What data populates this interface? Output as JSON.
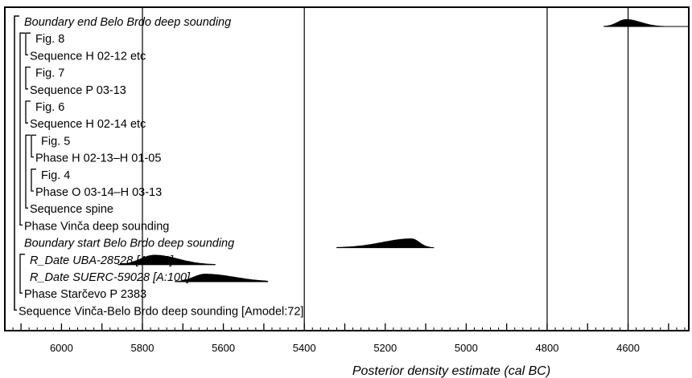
{
  "chart_data": {
    "type": "density-ridge",
    "title": "",
    "xlabel": "Posterior density estimate (cal BC)",
    "x_reversed": true,
    "xlim": [
      6140,
      4450
    ],
    "major_ticks": [
      6000,
      5800,
      5600,
      5400,
      5200,
      5000,
      4800,
      4600
    ],
    "minor_tick_step": 20,
    "gridlines": [
      5800,
      5400,
      4800,
      4600
    ],
    "rows": [
      {
        "label": "Boundary end Belo Brdo deep sounding",
        "italic": true,
        "indent": 0,
        "density": {
          "range": [
            4660,
            4450
          ],
          "peak": 4605,
          "height": 0.55,
          "skew": 0.6
        }
      },
      {
        "label": "Fig. 8",
        "italic": false,
        "indent": 2
      },
      {
        "label": "Sequence H 02-12 etc",
        "italic": false,
        "indent": 1
      },
      {
        "label": "Fig. 7",
        "italic": false,
        "indent": 2
      },
      {
        "label": "Sequence P 03-13",
        "italic": false,
        "indent": 1
      },
      {
        "label": "Fig. 6",
        "italic": false,
        "indent": 2
      },
      {
        "label": "Sequence H 02-14 etc",
        "italic": false,
        "indent": 1
      },
      {
        "label": "Fig. 5",
        "italic": false,
        "indent": 3
      },
      {
        "label": "Phase H 02-13–H 01-05",
        "italic": false,
        "indent": 2
      },
      {
        "label": "Fig. 4",
        "italic": false,
        "indent": 3
      },
      {
        "label": "Phase O 03-14–H 03-13",
        "italic": false,
        "indent": 2
      },
      {
        "label": "Sequence spine",
        "italic": false,
        "indent": 1
      },
      {
        "label": "Phase Vinča deep sounding",
        "italic": false,
        "indent": 0
      },
      {
        "label": "Boundary start Belo Brdo deep sounding",
        "italic": true,
        "indent": 0,
        "density": {
          "range": [
            5320,
            5080
          ],
          "peak": 5135,
          "height": 0.7,
          "skew": 0.9
        }
      },
      {
        "label": "R_Date UBA-28528 [A:100]",
        "italic": true,
        "indent": 1,
        "density": {
          "range": [
            5860,
            5620
          ],
          "peak": 5770,
          "height": 0.75,
          "skew": 1.0
        }
      },
      {
        "label": "R_Date SUERC-59028 [A:100]",
        "italic": true,
        "indent": 1,
        "density": {
          "range": [
            5720,
            5490
          ],
          "peak": 5645,
          "height": 0.6,
          "skew": 1.2
        }
      },
      {
        "label": "Phase Starčevo P 2383",
        "italic": false,
        "indent": 0
      },
      {
        "label": "Sequence Vinča-Belo Brdo deep sounding [Amodel:72]",
        "italic": false,
        "indent": -1
      }
    ]
  }
}
